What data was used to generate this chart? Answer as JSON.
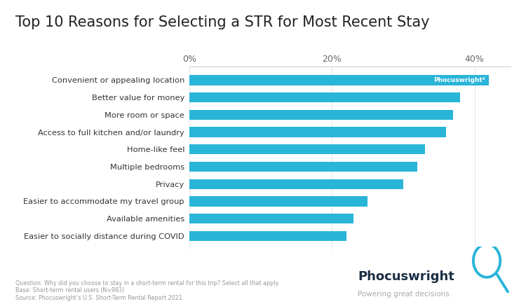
{
  "title": "Top 10 Reasons for Selecting a STR for Most Recent Stay",
  "categories": [
    "Easier to socially distance during COVID",
    "Available amenities",
    "Easier to accommodate my travel group",
    "Privacy",
    "Multiple bedrooms",
    "Home-like feel",
    "Access to full kitchen and/or laundry",
    "More room or space",
    "Better value for money",
    "Convenient or appealing location"
  ],
  "values": [
    22,
    23,
    25,
    30,
    32,
    33,
    36,
    37,
    38,
    42
  ],
  "bar_color": "#29B5D8",
  "background_color": "#ffffff",
  "xlim": [
    0,
    45
  ],
  "xticks": [
    0,
    20,
    40
  ],
  "xtick_labels": [
    "0%",
    "20%",
    "40%"
  ],
  "title_fontsize": 15,
  "bar_height": 0.58,
  "footnote_line1": "Question: Why did you choose to stay in a short-term rental for this trip? Select all that apply.",
  "footnote_line2": "Base: Short-term rental users (N=983)",
  "footnote_line3": "Source: Phocuswright’s U.S. Short-Term Rental Report 2021",
  "logo_text": "Phocuswright",
  "logo_tagline": "Powering great decisions.",
  "watermark_text": "Phocuswright"
}
